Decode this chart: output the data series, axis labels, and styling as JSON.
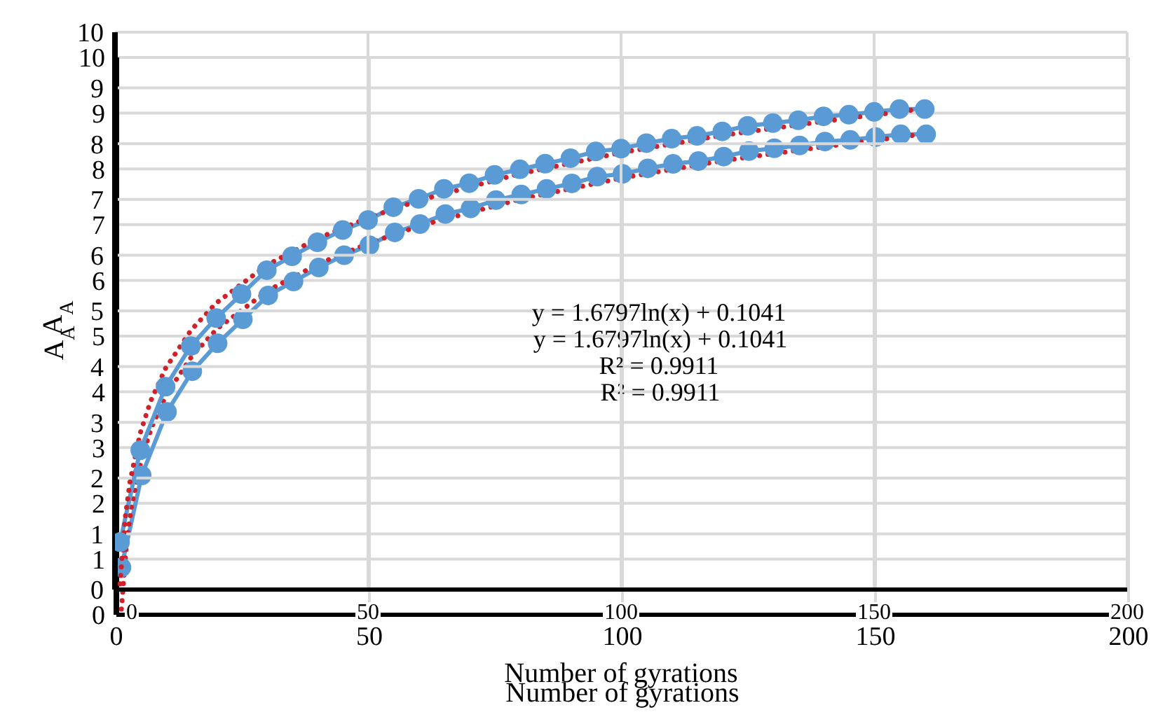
{
  "chart_data": [
    {
      "type": "line",
      "xlabel": "Number of gyrations",
      "ylabel": "A$_{A}$",
      "xlim": [
        0,
        200
      ],
      "xticks": [
        0,
        50,
        100,
        150,
        200
      ],
      "ylim": [
        0,
        10
      ],
      "yticks": [
        0,
        1,
        2,
        3,
        4,
        5,
        6,
        7,
        8,
        9,
        10
      ],
      "grid": true,
      "annotations": [
        "y = 1.6797ln(x) + 0.1041",
        "R² = 0.9911"
      ],
      "series": [
        {
          "color": "#5b9bd5",
          "marker": "circle",
          "x": [
            1,
            5,
            10,
            15,
            20,
            25,
            30,
            35,
            40,
            45,
            50,
            55,
            60,
            65,
            70,
            75,
            80,
            85,
            90,
            95,
            100,
            105,
            110,
            115,
            120,
            125,
            130,
            135,
            140,
            145,
            150,
            155,
            160
          ],
          "values": [
            0.85,
            2.5,
            3.64,
            4.37,
            4.87,
            5.3,
            5.73,
            5.98,
            6.23,
            6.45,
            6.63,
            6.86,
            7.01,
            7.19,
            7.29,
            7.44,
            7.54,
            7.64,
            7.74,
            7.86,
            7.91,
            8.01,
            8.09,
            8.14,
            8.22,
            8.32,
            8.37,
            8.42,
            8.49,
            8.52,
            8.57,
            8.62,
            8.62
          ]
        },
        {
          "color": "#d0202a",
          "marker": "none",
          "line_style": "dotted",
          "x": [
            1,
            2,
            3,
            5,
            7,
            10,
            15,
            20,
            30,
            40,
            50,
            60,
            80,
            100,
            120,
            140,
            160
          ],
          "values": [
            0.1,
            1.27,
            1.95,
            2.81,
            3.37,
            3.97,
            4.65,
            5.14,
            5.82,
            6.3,
            6.67,
            6.98,
            7.46,
            7.84,
            8.15,
            8.4,
            8.63
          ]
        }
      ]
    },
    {
      "type": "line",
      "xlabel": "Number of gyrations",
      "ylabel": "A$_{A}$",
      "xlim": [
        0,
        200
      ],
      "xticks": [
        0,
        50,
        100,
        150,
        200
      ],
      "ylim": [
        0,
        10
      ],
      "yticks": [
        0,
        1,
        2,
        3,
        4,
        5,
        6,
        7,
        8,
        9,
        10
      ],
      "grid": true,
      "annotations": [
        "y = 1.6797ln(x) + 0.1041",
        "R² = 0.9911"
      ],
      "series": [
        {
          "color": "#5b9bd5",
          "marker": "circle",
          "x": [
            1,
            5,
            10,
            15,
            20,
            25,
            30,
            35,
            40,
            45,
            50,
            55,
            60,
            65,
            70,
            75,
            80,
            85,
            90,
            95,
            100,
            105,
            110,
            115,
            120,
            125,
            130,
            135,
            140,
            145,
            150,
            155,
            160
          ],
          "values": [
            0.85,
            2.5,
            3.64,
            4.37,
            4.87,
            5.3,
            5.73,
            5.98,
            6.23,
            6.45,
            6.63,
            6.86,
            7.01,
            7.19,
            7.29,
            7.44,
            7.54,
            7.64,
            7.74,
            7.86,
            7.91,
            8.01,
            8.09,
            8.14,
            8.22,
            8.32,
            8.37,
            8.42,
            8.49,
            8.52,
            8.57,
            8.62,
            8.62
          ]
        },
        {
          "color": "#d0202a",
          "marker": "none",
          "line_style": "dotted",
          "x": [
            1,
            2,
            3,
            5,
            7,
            10,
            15,
            20,
            30,
            40,
            50,
            60,
            80,
            100,
            120,
            140,
            160
          ],
          "values": [
            0.1,
            1.27,
            1.95,
            2.81,
            3.37,
            3.97,
            4.65,
            5.14,
            5.82,
            6.3,
            6.67,
            6.98,
            7.46,
            7.84,
            8.15,
            8.4,
            8.63
          ]
        }
      ]
    }
  ]
}
